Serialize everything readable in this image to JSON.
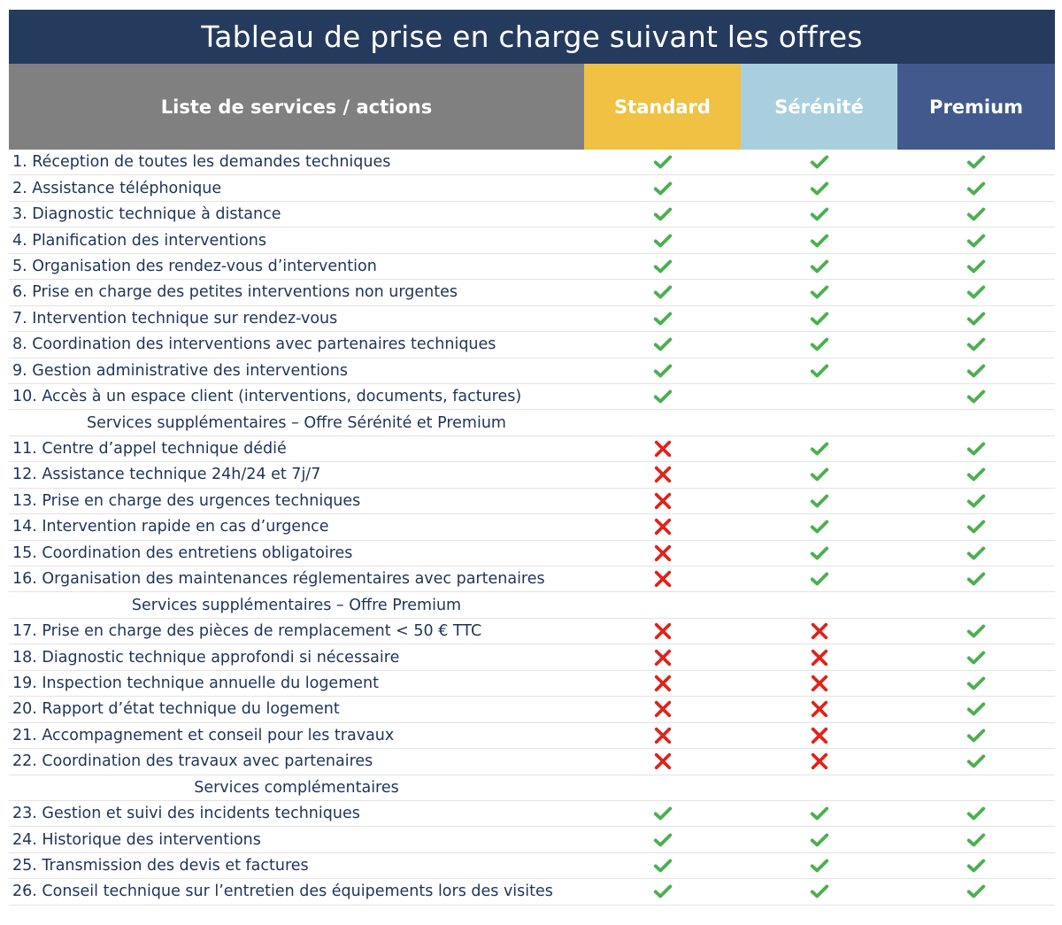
{
  "title": "Tableau de prise en charge suivant les offres",
  "headers": {
    "services": "Liste de services / actions",
    "standard": "Standard",
    "serenite": "Sérénité",
    "premium": "Premium"
  },
  "colors": {
    "title_bg": "#253b5e",
    "services_header": "#808080",
    "standard_header": "#f0c142",
    "serenite_header": "#a9cfdf",
    "premium_header": "#42598e",
    "check": "#4caf50",
    "cross": "#e0231a"
  },
  "rows": [
    {
      "type": "item",
      "label": "1. Réception de toutes les demandes techniques",
      "standard": "check",
      "serenite": "check",
      "premium": "check"
    },
    {
      "type": "item",
      "label": "2. Assistance téléphonique",
      "standard": "check",
      "serenite": "check",
      "premium": "check"
    },
    {
      "type": "item",
      "label": "3. Diagnostic technique à distance",
      "standard": "check",
      "serenite": "check",
      "premium": "check"
    },
    {
      "type": "item",
      "label": "4. Planification des interventions",
      "standard": "check",
      "serenite": "check",
      "premium": "check"
    },
    {
      "type": "item",
      "label": "5. Organisation des rendez-vous d’intervention",
      "standard": "check",
      "serenite": "check",
      "premium": "check"
    },
    {
      "type": "item",
      "label": "6. Prise en charge des petites interventions non urgentes",
      "standard": "check",
      "serenite": "check",
      "premium": "check"
    },
    {
      "type": "item",
      "label": "7. Intervention technique sur rendez-vous",
      "standard": "check",
      "serenite": "check",
      "premium": "check"
    },
    {
      "type": "item",
      "label": "8. Coordination des interventions avec partenaires techniques",
      "standard": "check",
      "serenite": "check",
      "premium": "check"
    },
    {
      "type": "item",
      "label": "9. Gestion administrative des interventions",
      "standard": "check",
      "serenite": "check",
      "premium": "check"
    },
    {
      "type": "item",
      "label": "10. Accès à un espace client (interventions, documents, factures)",
      "standard": "check",
      "serenite": "",
      "premium": "check"
    },
    {
      "type": "section",
      "label": "Services supplémentaires – Offre Sérénité et Premium"
    },
    {
      "type": "item",
      "label": "11. Centre d’appel technique dédié",
      "standard": "cross",
      "serenite": "check",
      "premium": "check"
    },
    {
      "type": "item",
      "label": "12. Assistance technique 24h/24 et 7j/7",
      "standard": "cross",
      "serenite": "check",
      "premium": "check"
    },
    {
      "type": "item",
      "label": "13. Prise en charge des urgences techniques",
      "standard": "cross",
      "serenite": "check",
      "premium": "check"
    },
    {
      "type": "item",
      "label": "14. Intervention rapide en cas d’urgence",
      "standard": "cross",
      "serenite": "check",
      "premium": "check"
    },
    {
      "type": "item",
      "label": "15. Coordination des entretiens obligatoires",
      "standard": "cross",
      "serenite": "check",
      "premium": "check"
    },
    {
      "type": "item",
      "label": "16. Organisation des maintenances réglementaires avec partenaires",
      "standard": "cross",
      "serenite": "check",
      "premium": "check"
    },
    {
      "type": "section",
      "label": "Services supplémentaires – Offre Premium"
    },
    {
      "type": "item",
      "label": "17. Prise en charge des pièces de remplacement < 50 € TTC",
      "standard": "cross",
      "serenite": "cross",
      "premium": "check"
    },
    {
      "type": "item",
      "label": "18. Diagnostic technique approfondi si nécessaire",
      "standard": "cross",
      "serenite": "cross",
      "premium": "check"
    },
    {
      "type": "item",
      "label": "19. Inspection technique annuelle du logement",
      "standard": "cross",
      "serenite": "cross",
      "premium": "check"
    },
    {
      "type": "item",
      "label": "20. Rapport d’état technique du logement",
      "standard": "cross",
      "serenite": "cross",
      "premium": "check"
    },
    {
      "type": "item",
      "label": "21. Accompagnement et conseil pour les travaux",
      "standard": "cross",
      "serenite": "cross",
      "premium": "check"
    },
    {
      "type": "item",
      "label": "22. Coordination des travaux avec partenaires",
      "standard": "cross",
      "serenite": "cross",
      "premium": "check"
    },
    {
      "type": "section",
      "label": "Services complémentaires"
    },
    {
      "type": "item",
      "label": "23. Gestion et suivi des incidents techniques",
      "standard": "check",
      "serenite": "check",
      "premium": "check"
    },
    {
      "type": "item",
      "label": "24. Historique des interventions",
      "standard": "check",
      "serenite": "check",
      "premium": "check"
    },
    {
      "type": "item",
      "label": "25. Transmission des devis et factures",
      "standard": "check",
      "serenite": "check",
      "premium": "check"
    },
    {
      "type": "item",
      "label": "26. Conseil technique sur l’entretien des équipements lors des visites",
      "standard": "check",
      "serenite": "check",
      "premium": "check"
    }
  ]
}
